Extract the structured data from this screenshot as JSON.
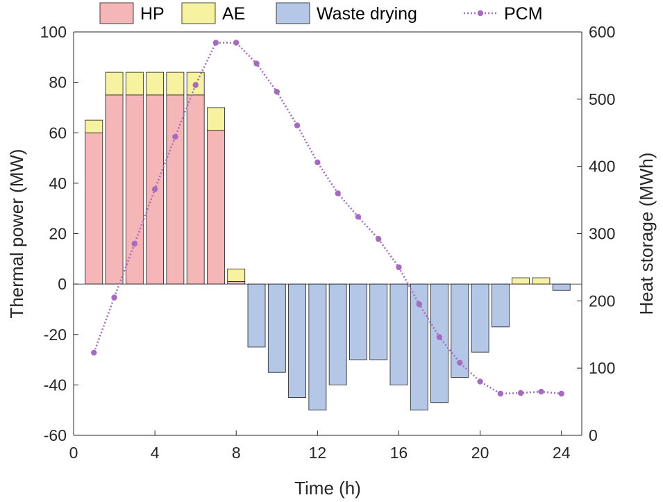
{
  "chart_data": {
    "type": "bar",
    "subtype": "stacked-bar-with-secondary-line",
    "x": [
      1,
      2,
      3,
      4,
      5,
      6,
      7,
      8,
      9,
      10,
      11,
      12,
      13,
      14,
      15,
      16,
      17,
      18,
      19,
      20,
      21,
      22,
      23,
      24
    ],
    "series": [
      {
        "name": "HP",
        "axis": "left",
        "kind": "bar",
        "color": "#f4b6b6",
        "values": [
          60,
          75,
          75,
          75,
          75,
          75,
          61,
          1,
          0,
          0,
          0,
          0,
          0,
          0,
          0,
          0,
          0,
          0,
          0,
          0,
          0,
          0,
          0,
          0
        ]
      },
      {
        "name": "AE",
        "axis": "left",
        "kind": "bar",
        "color": "#f7f2a0",
        "values": [
          5,
          9,
          9,
          9,
          9,
          9,
          9,
          5,
          0,
          0,
          0,
          0,
          0,
          0,
          0,
          0,
          0,
          0,
          0,
          0,
          0,
          2.5,
          2.5,
          0
        ]
      },
      {
        "name": "Waste drying",
        "axis": "left",
        "kind": "bar",
        "color": "#b4c7e7",
        "values": [
          0,
          0,
          0,
          0,
          0,
          0,
          0,
          0,
          -25,
          -35,
          -45,
          -50,
          -40,
          -30,
          -30,
          -40,
          -50,
          -47,
          -37,
          -27,
          -17,
          0,
          0,
          -2.5
        ]
      },
      {
        "name": "PCM",
        "axis": "right",
        "kind": "line",
        "color": "#a46bbf",
        "values": [
          123,
          205,
          285,
          366,
          444,
          521,
          584,
          584,
          553,
          511,
          461,
          406,
          360,
          325,
          292,
          250,
          195,
          146,
          108,
          80,
          62,
          63,
          65,
          62
        ]
      }
    ],
    "xlabel": "Time (h)",
    "ylabel": "Thermal power (MW)",
    "y2label": "Heat storage (MWh)",
    "xlim": [
      0,
      25
    ],
    "ylim": [
      -60,
      100
    ],
    "y2lim": [
      0,
      600
    ],
    "xticks": [
      0,
      4,
      8,
      12,
      16,
      20,
      24
    ],
    "yticks": [
      -60,
      -40,
      -20,
      0,
      20,
      40,
      60,
      80,
      100
    ],
    "y2ticks": [
      0,
      100,
      200,
      300,
      400,
      500,
      600
    ],
    "legend_position": "top",
    "grid": false
  }
}
